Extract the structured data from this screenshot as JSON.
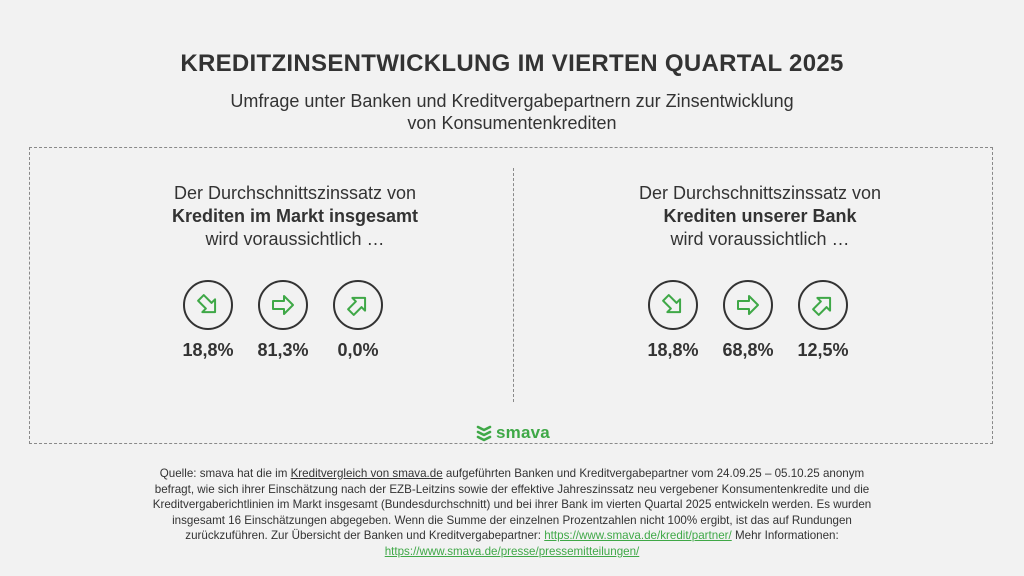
{
  "header": {
    "title": "KREDITZINSENTWICKLUNG IM VIERTEN QUARTAL 2025",
    "subtitle_line1": "Umfrage unter Banken und Kreditvergabepartnern zur Zinsentwicklung",
    "subtitle_line2": "von Konsumentenkrediten"
  },
  "panels": [
    {
      "line1": "Der Durchschnittszinssatz von",
      "line2": "Krediten im Markt insgesamt",
      "line3": "wird voraussichtlich …",
      "items": [
        {
          "icon": "arrow-down-right-icon",
          "value": "18,8%"
        },
        {
          "icon": "arrow-right-icon",
          "value": "81,3%"
        },
        {
          "icon": "arrow-up-right-icon",
          "value": "0,0%"
        }
      ]
    },
    {
      "line1": "Der Durchschnittszinssatz von",
      "line2": "Krediten unserer Bank",
      "line3": "wird voraussichtlich …",
      "items": [
        {
          "icon": "arrow-down-right-icon",
          "value": "18,8%"
        },
        {
          "icon": "arrow-right-icon",
          "value": "68,8%"
        },
        {
          "icon": "arrow-up-right-icon",
          "value": "12,5%"
        }
      ]
    }
  ],
  "logo": {
    "text": "smava"
  },
  "source": {
    "p1": "Quelle: smava hat die im ",
    "link1": "Kreditvergleich von smava.de",
    "p2": " aufgeführten Banken und Kreditvergabepartner vom 24.09.25 – 05.10.25 anonym befragt, wie sich ihrer Einschätzung nach der EZB-Leitzins sowie der effektive Jahreszinssatz neu vergebener Konsumentenkredite und die Kreditvergaberichtlinien im Markt insgesamt (Bundesdurchschnitt) und bei ihrer Bank im vierten Quartal 2025 entwickeln werden. Es wurden insgesamt 16 Einschätzungen abgegeben. Wenn die Summe der einzelnen Prozentzahlen nicht 100% ergibt, ist das auf Rundungen zurückzuführen. Zur Übersicht der Banken und Kreditvergabepartner: ",
    "link2": "https://www.smava.de/kredit/partner/",
    "p3": " Mehr Informationen: ",
    "link3": "https://www.smava.de/presse/pressemitteilungen/"
  },
  "colors": {
    "accent_green": "#3fa847",
    "text": "#333333",
    "background": "#f2f2f2"
  }
}
